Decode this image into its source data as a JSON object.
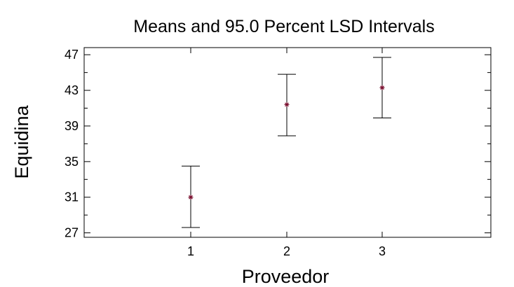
{
  "chart_data": {
    "type": "errorbar",
    "title": "Means and 95.0 Percent LSD Intervals",
    "xlabel": "Proveedor",
    "ylabel": "Equidina",
    "categories": [
      "1",
      "2",
      "3"
    ],
    "series": [
      {
        "means": [
          31.0,
          41.4,
          43.3
        ],
        "lower": [
          27.6,
          37.9,
          39.9
        ],
        "upper": [
          34.5,
          44.8,
          46.7
        ]
      }
    ],
    "ylim": [
      26.5,
      47.8
    ],
    "yticks": [
      27,
      31,
      35,
      39,
      43,
      47
    ],
    "grid": false,
    "colors": {
      "mean_marker": "#7a1030",
      "interval": "#000000",
      "axes": "#000000"
    }
  }
}
